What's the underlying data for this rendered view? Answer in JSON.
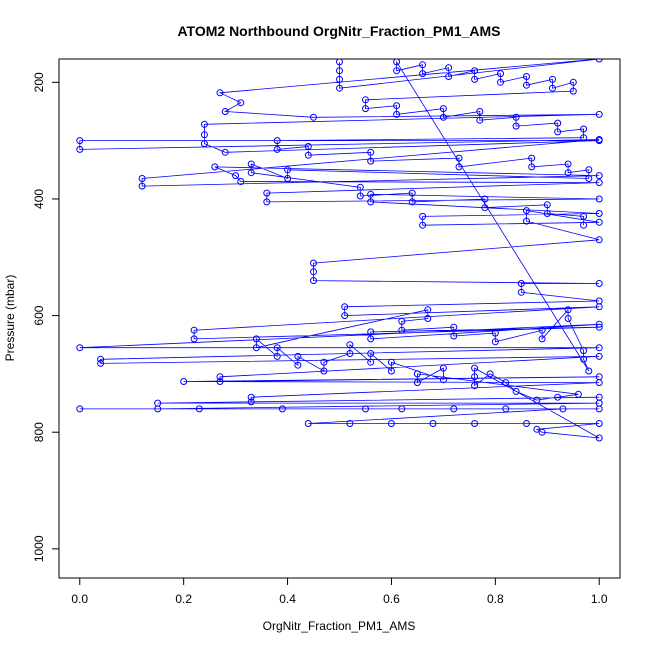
{
  "chart_data": {
    "type": "scatter",
    "title": "ATOM2 Northbound OrgNitr_Fraction_PM1_AMS",
    "xlabel": "OrgNitr_Fraction_PM1_AMS",
    "ylabel": "Pressure (mbar)",
    "xlim": [
      -0.04,
      1.04
    ],
    "ylim": [
      160,
      1050
    ],
    "y_inverted": true,
    "x_ticks": [
      "0.0",
      "0.2",
      "0.4",
      "0.6",
      "0.8",
      "1.0"
    ],
    "y_ticks": [
      "200",
      "400",
      "600",
      "800",
      "1000"
    ],
    "grid": false,
    "series": [
      {
        "color": "#0000ff",
        "marker": "open-circle",
        "connected": true,
        "points": [
          [
            0.5,
            165
          ],
          [
            0.5,
            180
          ],
          [
            0.5,
            195
          ],
          [
            0.5,
            210
          ],
          [
            1.0,
            160
          ],
          [
            0.27,
            218
          ],
          [
            0.31,
            235
          ],
          [
            0.28,
            250
          ],
          [
            0.45,
            260
          ],
          [
            1.0,
            255
          ],
          [
            0.24,
            272
          ],
          [
            0.24,
            290
          ],
          [
            0.24,
            305
          ],
          [
            0.28,
            320
          ],
          [
            1.0,
            300
          ],
          [
            0.0,
            300
          ],
          [
            0.0,
            315
          ],
          [
            1.0,
            298
          ],
          [
            0.12,
            365
          ],
          [
            0.12,
            378
          ],
          [
            1.0,
            360
          ],
          [
            0.26,
            345
          ],
          [
            0.3,
            360
          ],
          [
            0.31,
            370
          ],
          [
            1.0,
            372
          ],
          [
            0.36,
            390
          ],
          [
            0.36,
            405
          ],
          [
            1.0,
            400
          ],
          [
            0.56,
            392
          ],
          [
            0.56,
            405
          ],
          [
            1.0,
            425
          ],
          [
            0.66,
            430
          ],
          [
            0.66,
            445
          ],
          [
            1.0,
            440
          ],
          [
            0.86,
            420
          ],
          [
            0.86,
            438
          ],
          [
            1.0,
            470
          ],
          [
            0.45,
            510
          ],
          [
            0.45,
            525
          ],
          [
            0.45,
            540
          ],
          [
            1.0,
            545
          ],
          [
            0.85,
            545
          ],
          [
            0.85,
            560
          ],
          [
            1.0,
            575
          ],
          [
            0.51,
            585
          ],
          [
            0.51,
            600
          ],
          [
            1.0,
            585
          ],
          [
            0.22,
            625
          ],
          [
            0.22,
            640
          ],
          [
            1.0,
            620
          ],
          [
            0.56,
            628
          ],
          [
            0.56,
            640
          ],
          [
            1.0,
            615
          ],
          [
            0.0,
            655
          ],
          [
            1.0,
            655
          ],
          [
            0.04,
            675
          ],
          [
            0.04,
            682
          ],
          [
            1.0,
            670
          ],
          [
            0.27,
            705
          ],
          [
            0.27,
            713
          ],
          [
            1.0,
            705
          ],
          [
            0.2,
            713
          ],
          [
            1.0,
            715
          ],
          [
            0.33,
            740
          ],
          [
            0.33,
            748
          ],
          [
            1.0,
            740
          ],
          [
            0.15,
            750
          ],
          [
            1.0,
            750
          ],
          [
            0.15,
            760
          ],
          [
            0.0,
            760
          ],
          [
            1.0,
            760
          ],
          [
            0.23,
            760
          ],
          [
            0.39,
            760
          ],
          [
            0.55,
            760
          ],
          [
            0.62,
            760
          ],
          [
            0.72,
            760
          ],
          [
            0.82,
            760
          ],
          [
            0.93,
            760
          ],
          [
            0.44,
            785
          ],
          [
            0.52,
            785
          ],
          [
            0.6,
            785
          ],
          [
            0.68,
            785
          ],
          [
            0.76,
            785
          ],
          [
            0.86,
            785
          ],
          [
            1.0,
            785
          ],
          [
            0.88,
            795
          ],
          [
            0.89,
            800
          ],
          [
            1.0,
            810
          ],
          [
            0.76,
            690
          ],
          [
            0.76,
            705
          ],
          [
            0.76,
            720
          ],
          [
            0.79,
            700
          ],
          [
            0.82,
            715
          ],
          [
            0.84,
            730
          ],
          [
            0.88,
            745
          ],
          [
            0.92,
            740
          ],
          [
            0.96,
            735
          ],
          [
            0.65,
            700
          ],
          [
            0.65,
            715
          ],
          [
            0.7,
            690
          ],
          [
            0.7,
            710
          ],
          [
            0.6,
            680
          ],
          [
            0.6,
            695
          ],
          [
            0.56,
            665
          ],
          [
            0.56,
            680
          ],
          [
            0.52,
            650
          ],
          [
            0.52,
            665
          ],
          [
            0.47,
            680
          ],
          [
            0.47,
            695
          ],
          [
            0.42,
            670
          ],
          [
            0.42,
            685
          ],
          [
            0.38,
            655
          ],
          [
            0.38,
            670
          ],
          [
            0.34,
            640
          ],
          [
            0.34,
            655
          ],
          [
            0.67,
            590
          ],
          [
            0.67,
            605
          ],
          [
            0.62,
            610
          ],
          [
            0.62,
            625
          ],
          [
            0.72,
            620
          ],
          [
            0.72,
            635
          ],
          [
            0.8,
            630
          ],
          [
            0.8,
            645
          ],
          [
            0.89,
            625
          ],
          [
            0.89,
            640
          ],
          [
            0.94,
            590
          ],
          [
            0.94,
            605
          ],
          [
            0.97,
            660
          ],
          [
            0.97,
            675
          ],
          [
            0.98,
            695
          ],
          [
            0.61,
            165
          ],
          [
            0.61,
            180
          ],
          [
            0.66,
            170
          ],
          [
            0.66,
            185
          ],
          [
            0.71,
            175
          ],
          [
            0.71,
            190
          ],
          [
            0.76,
            180
          ],
          [
            0.76,
            195
          ],
          [
            0.81,
            185
          ],
          [
            0.81,
            200
          ],
          [
            0.86,
            190
          ],
          [
            0.86,
            205
          ],
          [
            0.91,
            195
          ],
          [
            0.91,
            210
          ],
          [
            0.95,
            200
          ],
          [
            0.95,
            215
          ],
          [
            0.55,
            230
          ],
          [
            0.55,
            245
          ],
          [
            0.61,
            240
          ],
          [
            0.61,
            255
          ],
          [
            0.7,
            245
          ],
          [
            0.7,
            260
          ],
          [
            0.77,
            250
          ],
          [
            0.77,
            265
          ],
          [
            0.84,
            260
          ],
          [
            0.84,
            275
          ],
          [
            0.92,
            270
          ],
          [
            0.92,
            285
          ],
          [
            0.97,
            280
          ],
          [
            0.97,
            295
          ],
          [
            0.38,
            300
          ],
          [
            0.38,
            315
          ],
          [
            0.44,
            310
          ],
          [
            0.44,
            325
          ],
          [
            0.56,
            320
          ],
          [
            0.56,
            335
          ],
          [
            0.73,
            330
          ],
          [
            0.73,
            345
          ],
          [
            0.87,
            330
          ],
          [
            0.87,
            345
          ],
          [
            0.94,
            340
          ],
          [
            0.94,
            355
          ],
          [
            0.98,
            350
          ],
          [
            0.98,
            365
          ],
          [
            0.4,
            350
          ],
          [
            0.4,
            365
          ],
          [
            0.33,
            340
          ],
          [
            0.33,
            355
          ],
          [
            0.54,
            380
          ],
          [
            0.54,
            395
          ],
          [
            0.64,
            390
          ],
          [
            0.64,
            405
          ],
          [
            0.78,
            400
          ],
          [
            0.78,
            415
          ],
          [
            0.9,
            410
          ],
          [
            0.9,
            425
          ],
          [
            0.97,
            430
          ],
          [
            0.97,
            445
          ]
        ]
      }
    ]
  }
}
